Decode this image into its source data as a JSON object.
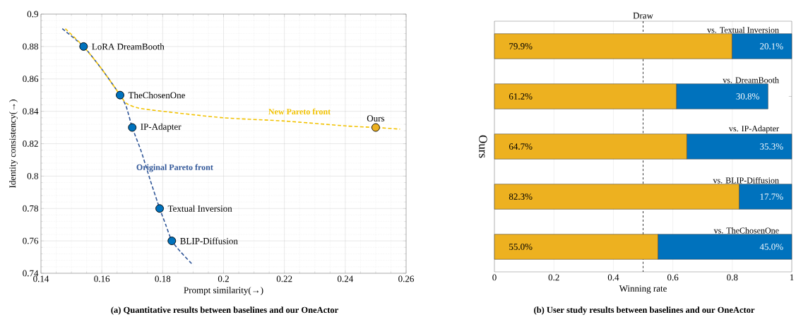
{
  "chart_data": [
    {
      "type": "line",
      "title": "(a) Quantitative results between baselines and our OneActor",
      "xlabel": "Prompt similarity(→)",
      "ylabel": "Identity consistency(→)",
      "xlim": [
        0.14,
        0.26
      ],
      "ylim": [
        0.74,
        0.9
      ],
      "xticks": [
        0.14,
        0.16,
        0.18,
        0.2,
        0.22,
        0.24,
        0.26
      ],
      "yticks": [
        0.74,
        0.76,
        0.78,
        0.8,
        0.82,
        0.84,
        0.86,
        0.88,
        0.9
      ],
      "grid": true,
      "series": [
        {
          "type": "line",
          "name": "Original Pareto front",
          "color": "#2f5597",
          "line_style": "dashed",
          "marker": "none",
          "x": [
            0.147,
            0.154,
            0.16,
            0.166,
            0.168,
            0.17,
            0.173,
            0.176,
            0.179,
            0.181,
            0.183,
            0.186,
            0.19
          ],
          "values": [
            0.891,
            0.88,
            0.866,
            0.85,
            0.843,
            0.83,
            0.815,
            0.797,
            0.78,
            0.77,
            0.76,
            0.753,
            0.745
          ]
        },
        {
          "type": "line",
          "name": "New Pareto front",
          "color": "#f2c200",
          "line_style": "dashed",
          "marker": "none",
          "x": [
            0.148,
            0.154,
            0.16,
            0.166,
            0.168,
            0.172,
            0.18,
            0.2,
            0.22,
            0.24,
            0.25,
            0.258
          ],
          "values": [
            0.891,
            0.88,
            0.866,
            0.85,
            0.845,
            0.842,
            0.84,
            0.836,
            0.834,
            0.831,
            0.83,
            0.829
          ]
        },
        {
          "type": "scatter",
          "marker": "circle",
          "x": [
            0.154,
            0.166,
            0.17,
            0.179,
            0.183,
            0.25
          ],
          "values": [
            0.88,
            0.85,
            0.83,
            0.78,
            0.76,
            0.83
          ],
          "colors": [
            "#0072bd",
            "#0072bd",
            "#0072bd",
            "#0072bd",
            "#0072bd",
            "#edb120"
          ]
        }
      ],
      "annotations": [
        {
          "text": "LoRA DreamBooth",
          "x": 0.154,
          "y": 0.88
        },
        {
          "text": "TheChosenOne",
          "x": 0.166,
          "y": 0.85
        },
        {
          "text": "IP-Adapter",
          "x": 0.17,
          "y": 0.83
        },
        {
          "text": "Textual Inversion",
          "x": 0.179,
          "y": 0.78
        },
        {
          "text": "BLIP-Diffusion",
          "x": 0.183,
          "y": 0.76
        },
        {
          "text": "Ours",
          "x": 0.25,
          "y": 0.83
        }
      ]
    },
    {
      "type": "bar",
      "orientation": "horizontal",
      "stacked": true,
      "title": "(b) User study results between baselines and our OneActor",
      "xlabel": "Winning rate",
      "ylabel": "Ours",
      "categories": [
        "vs. Textual Inversion",
        "vs. DreamBooth",
        "vs. IP-Adapter",
        "vs. BLIP-Diffusion",
        "vs. TheChosenOne"
      ],
      "xlim": [
        0,
        1
      ],
      "xticks": [
        0,
        0.2,
        0.4,
        0.6,
        0.8,
        1
      ],
      "grid": "x",
      "series": [
        {
          "color": "#edb120",
          "values": [
            0.799,
            0.612,
            0.647,
            0.823,
            0.55
          ],
          "value_labels": [
            "79.9%",
            "61.2%",
            "64.7%",
            "82.3%",
            "55.0%"
          ]
        },
        {
          "color": "#0072bd",
          "values": [
            0.201,
            0.308,
            0.353,
            0.177,
            0.45
          ],
          "value_labels": [
            "20.1%",
            "30.8%",
            "35.3%",
            "17.7%",
            "45.0%"
          ]
        }
      ],
      "ref_lines": [
        {
          "axis": "x",
          "value": 0.5,
          "label": "Draw",
          "color": "#000000",
          "line_style": "dashed"
        }
      ]
    }
  ]
}
